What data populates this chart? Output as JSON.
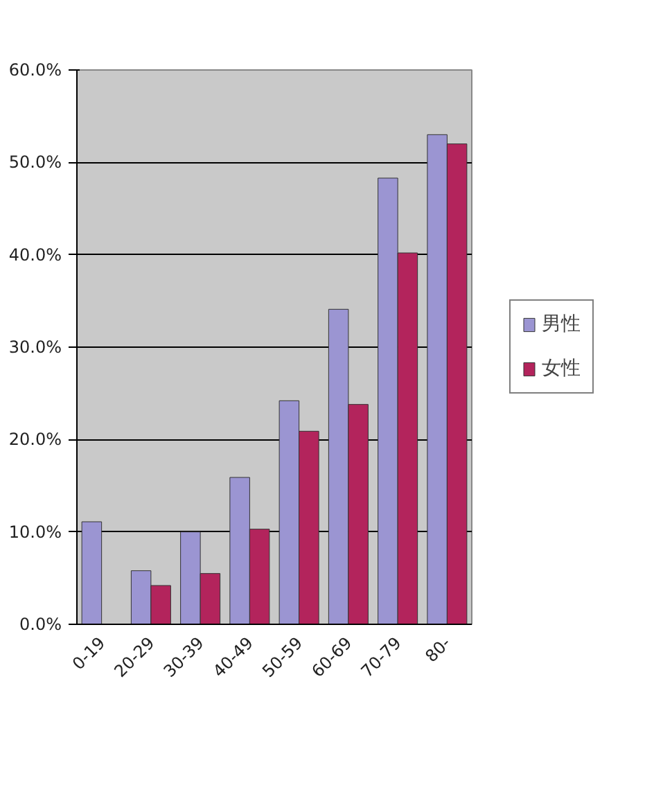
{
  "chart_data": {
    "type": "bar",
    "categories": [
      "0-19",
      "20-29",
      "30-39",
      "40-49",
      "50-59",
      "60-69",
      "70-79",
      "80-"
    ],
    "series": [
      {
        "name": "男性",
        "color": "#9b95d2",
        "values": [
          11.1,
          5.8,
          10.0,
          15.9,
          24.2,
          34.1,
          48.3,
          53.0
        ]
      },
      {
        "name": "女性",
        "color": "#b3245c",
        "values": [
          null,
          4.2,
          5.5,
          10.3,
          20.9,
          23.8,
          40.2,
          52.0
        ]
      }
    ],
    "ylim": [
      0,
      60
    ],
    "yticks": [
      {
        "value": 0,
        "label": "0.0%"
      },
      {
        "value": 10,
        "label": "10.0%"
      },
      {
        "value": 20,
        "label": "20.0%"
      },
      {
        "value": 30,
        "label": "30.0%"
      },
      {
        "value": 40,
        "label": "40.0%"
      },
      {
        "value": 50,
        "label": "50.0%"
      },
      {
        "value": 60,
        "label": "60.0%"
      }
    ],
    "grid": "y",
    "legend": "right"
  }
}
